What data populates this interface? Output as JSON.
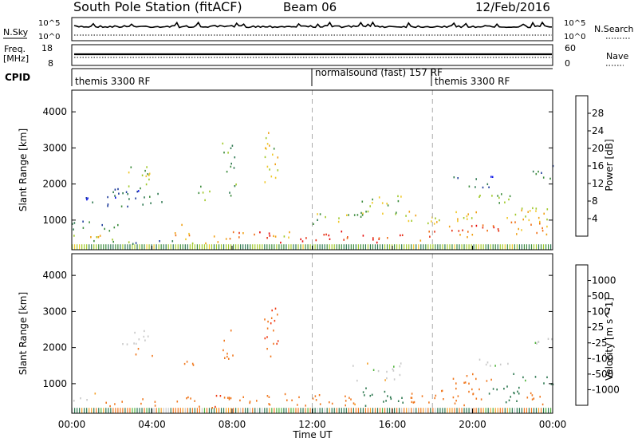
{
  "header": {
    "title": "South Pole Station (fitACF)",
    "beam": "Beam 06",
    "date": "12/Feb/2016"
  },
  "status": {
    "nsky_label": "N.Sky",
    "nsky_top": "10^5",
    "nsky_bottom": "10^0",
    "nsearch_label": "N.Search",
    "nsearch_top": "10^5",
    "nsearch_bottom": "10^0",
    "freq_label_1": "Freq.",
    "freq_label_2": "[MHz]",
    "freq_top": "18",
    "freq_bottom": "8",
    "nave_label": "Nave",
    "nave_top": "60",
    "nave_bottom": "0",
    "cpid_label": "CPID",
    "cpid_segments": [
      {
        "label": "themis 3300 RF",
        "start_hour": 0,
        "end_hour": 12
      },
      {
        "label": "normalsound (fast) 157 RF",
        "start_hour": 12,
        "end_hour": 18
      },
      {
        "label": "themis 3300 RF",
        "start_hour": 18,
        "end_hour": 24
      }
    ]
  },
  "colors": {
    "power_scale": [
      "#0a14e6",
      "#1e3c9b",
      "#2d7850",
      "#3c8c3c",
      "#a0c828",
      "#f0c828",
      "#f0a014",
      "#f06e14",
      "#e63214",
      "#e60a0a"
    ],
    "velocity_scale": [
      "#e60a0a",
      "#f03c14",
      "#f0781e",
      "#f5a028",
      "#c8c8c8",
      "#c8c8c8",
      "#50b43c",
      "#2d7850",
      "#1e5a96",
      "#0a14e6"
    ]
  },
  "chart_data": [
    {
      "type": "heatmap",
      "name": "power",
      "xlabel": "",
      "ylabel": "Slant Range [km]",
      "xlim": [
        0,
        24
      ],
      "ylim": [
        180,
        4600
      ],
      "yticks": [
        1000,
        2000,
        3000,
        4000
      ],
      "ytick_labels": [
        "1000",
        "2000",
        "3000",
        "4000"
      ],
      "colorbar_label": "Power [dB]",
      "colorbar_ticks": [
        "4",
        "8",
        "12",
        "16",
        "20",
        "24",
        "28"
      ],
      "clim": [
        0,
        30
      ],
      "bands": [
        {
          "x": [
            0,
            3
          ],
          "y": [
            450,
            620
          ],
          "value": 16
        },
        {
          "x": [
            1,
            3
          ],
          "y": [
            300,
            450
          ],
          "value": 10
        },
        {
          "x": [
            3,
            5
          ],
          "y": [
            350,
            500
          ],
          "value": 6
        },
        {
          "x": [
            5,
            6
          ],
          "y": [
            450,
            900
          ],
          "value": 20
        },
        {
          "x": [
            6,
            7.5
          ],
          "y": [
            350,
            600
          ],
          "value": 18
        },
        {
          "x": [
            7.5,
            9
          ],
          "y": [
            450,
            700
          ],
          "value": 22
        },
        {
          "x": [
            9,
            10.5
          ],
          "y": [
            400,
            700
          ],
          "value": 24
        },
        {
          "x": [
            10.5,
            11.3
          ],
          "y": [
            450,
            750
          ],
          "value": 16
        },
        {
          "x": [
            11.3,
            13.5
          ],
          "y": [
            400,
            750
          ],
          "value": 28
        },
        {
          "x": [
            13.5,
            15
          ],
          "y": [
            450,
            650
          ],
          "value": 24
        },
        {
          "x": [
            15,
            17
          ],
          "y": [
            400,
            650
          ],
          "value": 26
        },
        {
          "x": [
            17,
            18
          ],
          "y": [
            450,
            750
          ],
          "value": 22
        },
        {
          "x": [
            18,
            20
          ],
          "y": [
            550,
            900
          ],
          "value": 24
        },
        {
          "x": [
            20,
            22
          ],
          "y": [
            700,
            1000
          ],
          "value": 26
        },
        {
          "x": [
            22,
            24
          ],
          "y": [
            600,
            1000
          ],
          "value": 20
        },
        {
          "x": [
            0,
            2.5
          ],
          "y": [
            700,
            1000
          ],
          "value": 8
        },
        {
          "x": [
            0.5,
            4.5
          ],
          "y": [
            1400,
            1900
          ],
          "value": 6
        },
        {
          "x": [
            2.5,
            4
          ],
          "y": [
            1900,
            2500
          ],
          "value": 14
        },
        {
          "x": [
            6.3,
            6.9
          ],
          "y": [
            1500,
            2000
          ],
          "value": 12
        },
        {
          "x": [
            7.5,
            8.2
          ],
          "y": [
            1700,
            3200
          ],
          "value": 10
        },
        {
          "x": [
            9.6,
            10.3
          ],
          "y": [
            1700,
            3500
          ],
          "value": 15
        },
        {
          "x": [
            12,
            14
          ],
          "y": [
            900,
            1200
          ],
          "value": 12
        },
        {
          "x": [
            14,
            16.5
          ],
          "y": [
            1100,
            1700
          ],
          "value": 14
        },
        {
          "x": [
            16.5,
            18.5
          ],
          "y": [
            900,
            1300
          ],
          "value": 16
        },
        {
          "x": [
            18.5,
            20.5
          ],
          "y": [
            1000,
            1300
          ],
          "value": 18
        },
        {
          "x": [
            20,
            22
          ],
          "y": [
            1450,
            1750
          ],
          "value": 12
        },
        {
          "x": [
            21.5,
            24
          ],
          "y": [
            1000,
            1400
          ],
          "value": 16
        },
        {
          "x": [
            23,
            24
          ],
          "y": [
            2100,
            2600
          ],
          "value": 8
        },
        {
          "x": [
            19,
            21
          ],
          "y": [
            1900,
            2300
          ],
          "value": 6
        }
      ]
    },
    {
      "type": "heatmap",
      "name": "velocity",
      "xlabel": "Time UT",
      "ylabel": "Slant Range [km]",
      "xlim": [
        0,
        24
      ],
      "ylim": [
        180,
        4600
      ],
      "xticks": [
        0,
        4,
        8,
        12,
        16,
        20,
        24
      ],
      "xtick_labels": [
        "00:00",
        "04:00",
        "08:00",
        "12:00",
        "16:00",
        "20:00",
        "00:00"
      ],
      "yticks": [
        1000,
        2000,
        3000,
        4000
      ],
      "ytick_labels": [
        "1000",
        "2000",
        "3000",
        "4000"
      ],
      "colorbar_label": "Velocity [m s^-1]",
      "colorbar_ticks": [
        "-1000",
        "-500",
        "-100",
        "-25",
        "25",
        "100",
        "500",
        "1000"
      ],
      "bands": [
        {
          "x": [
            0,
            1.5
          ],
          "y": [
            550,
            800
          ],
          "value": 0
        },
        {
          "x": [
            1.5,
            4
          ],
          "y": [
            400,
            600
          ],
          "value": -200
        },
        {
          "x": [
            4,
            5.5
          ],
          "y": [
            400,
            600
          ],
          "value": -300
        },
        {
          "x": [
            5.5,
            7.5
          ],
          "y": [
            350,
            700
          ],
          "value": -400
        },
        {
          "x": [
            7.5,
            9.5
          ],
          "y": [
            350,
            700
          ],
          "value": -300
        },
        {
          "x": [
            9.5,
            11
          ],
          "y": [
            400,
            750
          ],
          "value": -350
        },
        {
          "x": [
            11,
            13
          ],
          "y": [
            400,
            800
          ],
          "value": -200
        },
        {
          "x": [
            13,
            14.5
          ],
          "y": [
            400,
            700
          ],
          "value": -150
        },
        {
          "x": [
            14.5,
            16.5
          ],
          "y": [
            400,
            900
          ],
          "value": 200
        },
        {
          "x": [
            16.5,
            18
          ],
          "y": [
            450,
            750
          ],
          "value": -200
        },
        {
          "x": [
            18,
            20.5
          ],
          "y": [
            400,
            900
          ],
          "value": -300
        },
        {
          "x": [
            20.5,
            22.5
          ],
          "y": [
            500,
            950
          ],
          "value": 300
        },
        {
          "x": [
            22.5,
            24
          ],
          "y": [
            450,
            850
          ],
          "value": -200
        },
        {
          "x": [
            2.5,
            4.2
          ],
          "y": [
            2100,
            2500
          ],
          "value": 0
        },
        {
          "x": [
            2.7,
            4
          ],
          "y": [
            1700,
            2000
          ],
          "value": -300
        },
        {
          "x": [
            5.5,
            6.1
          ],
          "y": [
            1500,
            2000
          ],
          "value": -400
        },
        {
          "x": [
            7.5,
            8.2
          ],
          "y": [
            1700,
            2600
          ],
          "value": -300
        },
        {
          "x": [
            9.6,
            10.3
          ],
          "y": [
            1700,
            3200
          ],
          "value": -500
        },
        {
          "x": [
            14,
            16.5
          ],
          "y": [
            1100,
            1600
          ],
          "value": 0
        },
        {
          "x": [
            19,
            21
          ],
          "y": [
            1000,
            1300
          ],
          "value": -250
        },
        {
          "x": [
            20,
            22
          ],
          "y": [
            1450,
            1700
          ],
          "value": 0
        },
        {
          "x": [
            22,
            24
          ],
          "y": [
            1000,
            1300
          ],
          "value": 150
        },
        {
          "x": [
            23,
            24
          ],
          "y": [
            2100,
            2500
          ],
          "value": 0
        }
      ]
    }
  ]
}
